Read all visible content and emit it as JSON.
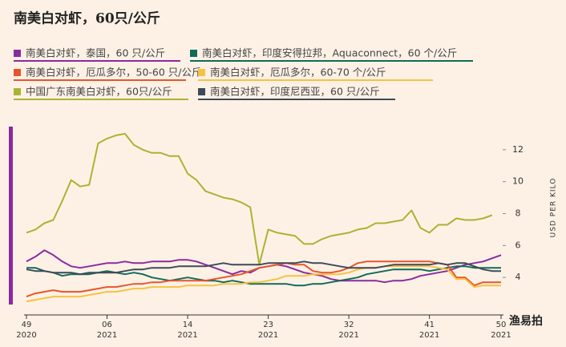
{
  "chart_data": {
    "type": "line",
    "title": "南美白对虾，60只/公斤",
    "y_axis_label": "USD PER KILO",
    "watermark": "渔易拍",
    "categories": [
      [
        "49",
        "2020"
      ],
      null,
      null,
      null,
      null,
      null,
      null,
      null,
      null,
      [
        "06",
        "2021"
      ],
      null,
      null,
      null,
      null,
      null,
      null,
      null,
      null,
      [
        "14",
        "2021"
      ],
      null,
      null,
      null,
      null,
      null,
      null,
      null,
      null,
      [
        "23",
        "2021"
      ],
      null,
      null,
      null,
      null,
      null,
      null,
      null,
      null,
      [
        "32",
        "2021"
      ],
      null,
      null,
      null,
      null,
      null,
      null,
      null,
      null,
      [
        "41",
        "2021"
      ],
      null,
      null,
      null,
      null,
      null,
      null,
      null,
      [
        "50",
        "2021"
      ]
    ],
    "ylim": [
      1.65,
      13.6
    ],
    "yticks": [
      4,
      6,
      8,
      10,
      12
    ],
    "series": [
      {
        "name": "南美白对虾，泰国，60 只/公斤",
        "color": "#8b2a9e",
        "values": [
          5.0,
          5.3,
          5.7,
          5.4,
          5.0,
          4.7,
          4.6,
          4.7,
          4.8,
          4.9,
          4.9,
          5.0,
          4.9,
          4.9,
          5.0,
          5.0,
          5.0,
          5.1,
          5.1,
          5.0,
          4.8,
          4.6,
          4.4,
          4.2,
          4.4,
          4.3,
          4.6,
          4.7,
          4.8,
          4.7,
          4.5,
          4.3,
          4.2,
          4.1,
          3.9,
          3.8,
          3.8,
          3.8,
          3.8,
          3.8,
          3.7,
          3.8,
          3.8,
          3.9,
          4.1,
          4.2,
          4.3,
          4.4,
          4.6,
          4.8,
          4.9,
          5.0,
          5.2,
          5.4
        ]
      },
      {
        "name": "南美白对虾，印度安得拉邦，Aquaconnect，60 个/公斤",
        "color": "#0f6b5a",
        "values": [
          4.6,
          4.6,
          4.4,
          4.3,
          4.1,
          4.2,
          4.2,
          4.2,
          4.3,
          4.4,
          4.3,
          4.2,
          4.3,
          4.2,
          4.0,
          3.9,
          3.8,
          3.9,
          4.0,
          3.9,
          3.8,
          3.8,
          3.7,
          3.8,
          3.7,
          3.6,
          3.6,
          3.6,
          3.6,
          3.6,
          3.5,
          3.5,
          3.6,
          3.6,
          3.7,
          3.8,
          3.9,
          4.0,
          4.2,
          4.3,
          4.4,
          4.5,
          4.5,
          4.5,
          4.5,
          4.4,
          4.5,
          4.6,
          4.7,
          4.7,
          4.6,
          4.6,
          4.6,
          4.6
        ]
      },
      {
        "name": "南美白对虾，厄瓜多尔，50-60 只/公斤",
        "color": "#e8552a",
        "values": [
          2.8,
          3.0,
          3.1,
          3.2,
          3.1,
          3.1,
          3.1,
          3.2,
          3.3,
          3.4,
          3.4,
          3.5,
          3.6,
          3.6,
          3.7,
          3.7,
          3.8,
          3.8,
          3.8,
          3.8,
          3.8,
          3.9,
          4.0,
          4.1,
          4.2,
          4.4,
          4.6,
          4.7,
          4.8,
          4.9,
          4.8,
          4.8,
          4.4,
          4.3,
          4.3,
          4.4,
          4.6,
          4.9,
          5.0,
          5.0,
          5.0,
          5.0,
          5.0,
          5.0,
          5.0,
          5.0,
          4.9,
          4.8,
          4.0,
          4.0,
          3.5,
          3.7,
          3.7,
          3.7
        ]
      },
      {
        "name": "南美白对虾，厄瓜多尔，60-70 个/公斤",
        "color": "#f5c242",
        "values": [
          2.5,
          2.6,
          2.7,
          2.8,
          2.8,
          2.8,
          2.8,
          2.9,
          3.0,
          3.1,
          3.1,
          3.2,
          3.3,
          3.3,
          3.4,
          3.4,
          3.4,
          3.4,
          3.5,
          3.5,
          3.5,
          3.5,
          3.6,
          3.6,
          3.6,
          3.7,
          3.7,
          3.8,
          3.9,
          4.1,
          4.1,
          4.1,
          4.2,
          4.2,
          4.2,
          4.2,
          4.3,
          4.5,
          4.6,
          4.6,
          4.7,
          4.7,
          4.7,
          4.7,
          4.7,
          4.7,
          4.6,
          4.5,
          3.9,
          3.9,
          3.4,
          3.5,
          3.5,
          3.5
        ]
      },
      {
        "name": "中国广东南美白对虾，60只/公斤",
        "color": "#a8b530",
        "values": [
          6.8,
          7.0,
          7.4,
          7.6,
          8.8,
          10.1,
          9.7,
          9.8,
          12.4,
          12.7,
          12.9,
          13.0,
          12.3,
          12.0,
          11.8,
          11.8,
          11.6,
          11.6,
          10.5,
          10.1,
          9.4,
          9.2,
          9.0,
          8.9,
          8.7,
          8.4,
          4.8,
          7.0,
          6.8,
          6.7,
          6.6,
          6.1,
          6.1,
          6.4,
          6.6,
          6.7,
          6.8,
          7.0,
          7.1,
          7.4,
          7.4,
          7.5,
          7.6,
          8.2,
          7.1,
          6.8,
          7.3,
          7.3,
          7.7,
          7.6,
          7.6,
          7.7,
          7.9,
          null
        ]
      },
      {
        "name": "南美白对虾，印度尼西亚，60 只/公斤",
        "color": "#3d4a57",
        "values": [
          4.5,
          4.4,
          4.4,
          4.3,
          4.3,
          4.3,
          4.2,
          4.3,
          4.3,
          4.3,
          4.3,
          4.4,
          4.5,
          4.5,
          4.6,
          4.6,
          4.6,
          4.7,
          4.7,
          4.7,
          4.7,
          4.8,
          4.9,
          4.8,
          4.8,
          4.8,
          4.8,
          4.9,
          4.9,
          4.9,
          4.9,
          5.0,
          4.9,
          4.9,
          4.8,
          4.7,
          4.6,
          4.6,
          4.6,
          4.6,
          4.7,
          4.8,
          4.8,
          4.8,
          4.8,
          4.8,
          4.9,
          4.8,
          4.9,
          4.9,
          4.7,
          4.5,
          4.4,
          4.4
        ]
      }
    ]
  }
}
